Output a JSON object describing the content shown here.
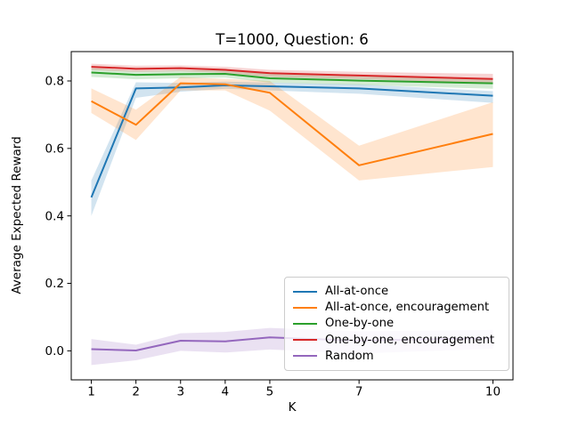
{
  "chart_data": {
    "type": "line",
    "title": "T=1000, Question: 6",
    "xlabel": "K",
    "ylabel": "Average Expected Reward",
    "x": [
      1,
      2,
      3,
      4,
      5,
      7,
      10
    ],
    "xlim": [
      0.55,
      10.45
    ],
    "ylim": [
      -0.086,
      0.887
    ],
    "xticks": {
      "values": [
        1,
        2,
        3,
        4,
        5,
        7,
        10
      ],
      "labels": [
        "1",
        "2",
        "3",
        "4",
        "5",
        "7",
        "10"
      ]
    },
    "yticks": {
      "values": [
        0.0,
        0.2,
        0.4,
        0.6,
        0.8
      ],
      "labels": [
        "0.0",
        "0.2",
        "0.4",
        "0.6",
        "0.8"
      ]
    },
    "grid": false,
    "legend_position": "lower right",
    "band_alpha": 0.2,
    "series": [
      {
        "name": "All-at-once",
        "color": "#1f77b4",
        "values": [
          0.455,
          0.778,
          0.781,
          0.787,
          0.784,
          0.778,
          0.756
        ],
        "band_low": [
          0.4,
          0.75,
          0.768,
          0.777,
          0.772,
          0.762,
          0.735
        ],
        "band_high": [
          0.505,
          0.796,
          0.794,
          0.798,
          0.795,
          0.79,
          0.77
        ]
      },
      {
        "name": "All-at-once, encouragement",
        "color": "#ff7f0e",
        "values": [
          0.74,
          0.67,
          0.793,
          0.79,
          0.765,
          0.55,
          0.643
        ],
        "band_low": [
          0.705,
          0.625,
          0.772,
          0.772,
          0.712,
          0.505,
          0.545
        ],
        "band_high": [
          0.778,
          0.715,
          0.812,
          0.806,
          0.8,
          0.608,
          0.737
        ]
      },
      {
        "name": "One-by-one",
        "color": "#2ca02c",
        "values": [
          0.825,
          0.818,
          0.82,
          0.821,
          0.808,
          0.801,
          0.793
        ],
        "band_low": [
          0.812,
          0.805,
          0.808,
          0.81,
          0.795,
          0.788,
          0.777
        ],
        "band_high": [
          0.838,
          0.83,
          0.832,
          0.832,
          0.82,
          0.813,
          0.807
        ]
      },
      {
        "name": "One-by-one, encouragement",
        "color": "#d62728",
        "values": [
          0.842,
          0.836,
          0.838,
          0.833,
          0.823,
          0.816,
          0.806
        ],
        "band_low": [
          0.833,
          0.827,
          0.829,
          0.824,
          0.812,
          0.806,
          0.792
        ],
        "band_high": [
          0.851,
          0.845,
          0.846,
          0.842,
          0.833,
          0.827,
          0.821
        ]
      },
      {
        "name": "Random",
        "color": "#9467bd",
        "values": [
          0.005,
          0.001,
          0.03,
          0.028,
          0.04,
          0.03,
          0.038
        ],
        "band_low": [
          -0.042,
          -0.028,
          0.0,
          -0.005,
          0.004,
          -0.008,
          0.006
        ],
        "band_high": [
          0.035,
          0.018,
          0.052,
          0.056,
          0.068,
          0.058,
          0.062
        ]
      }
    ]
  }
}
